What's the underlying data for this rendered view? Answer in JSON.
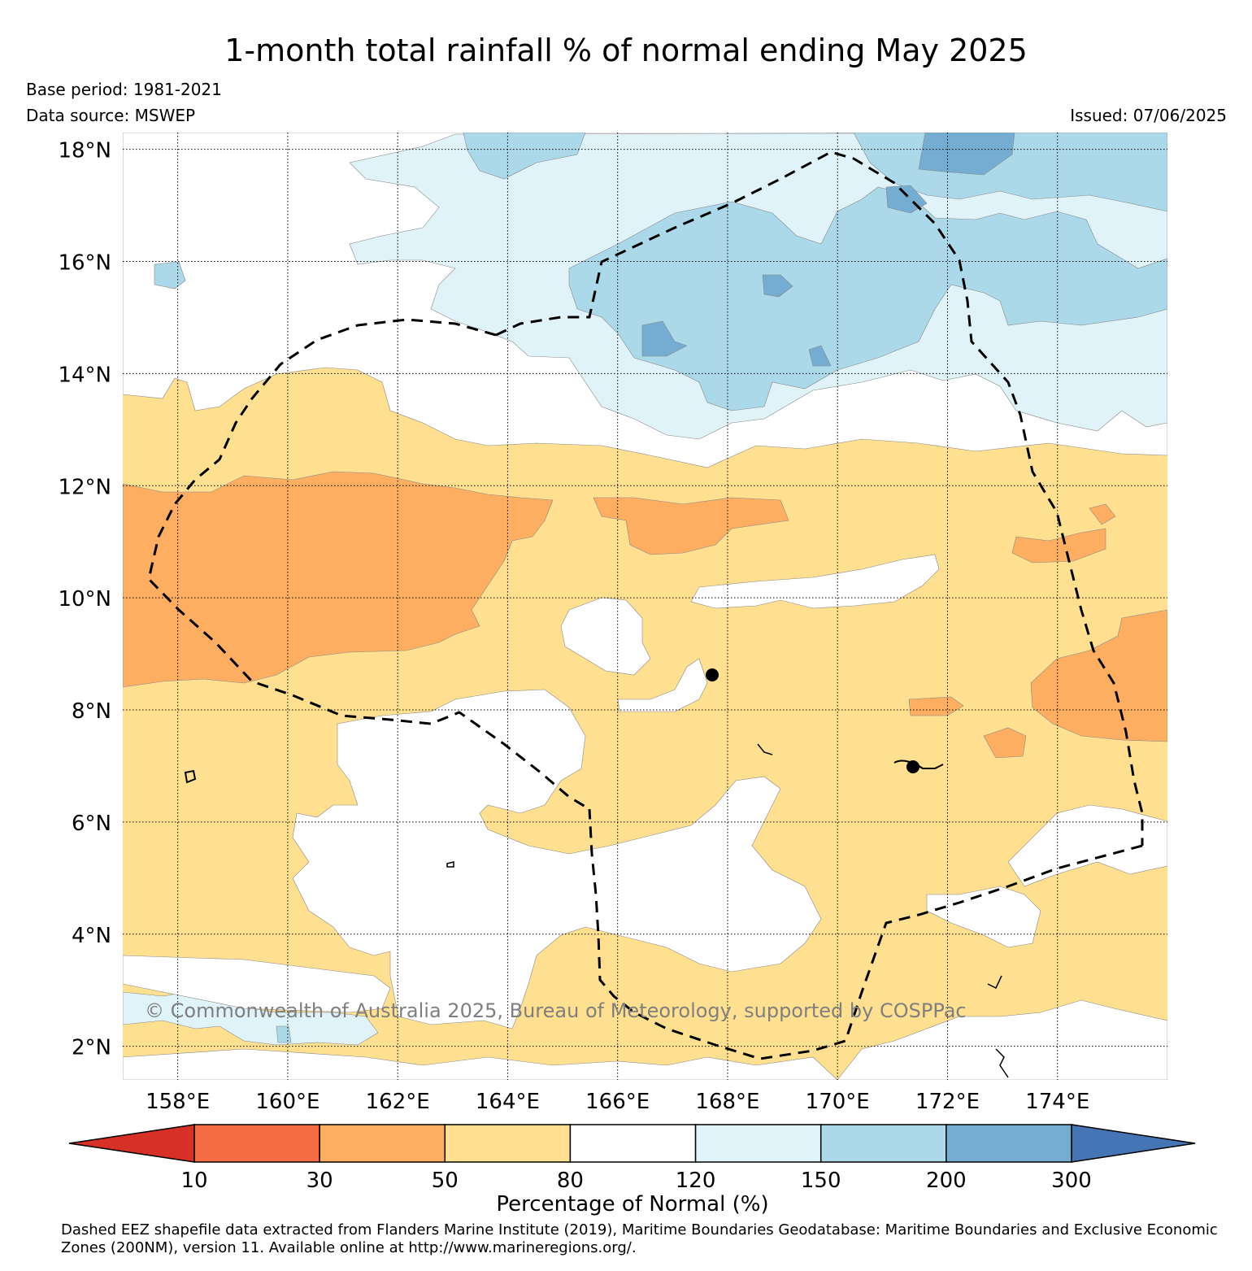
{
  "title": "1-month total rainfall % of normal ending May 2025",
  "base_period": "Base period: 1981-2021",
  "data_source": "Data source: MSWEP",
  "issued": "Issued: 07/06/2025",
  "copyright": "© Commonwealth of Australia 2025, Bureau of Meteorology, supported by COSPPac",
  "footnote": "Dashed EEZ shapefile data extracted from Flanders Marine Institute (2019), Maritime Boundaries Geodatabase: Maritime Boundaries and Exclusive Economic Zones (200NM), version 11. Available online at http://www.marineregions.org/.",
  "map": {
    "lon_range": [
      157,
      176
    ],
    "lat_range": [
      1.4,
      18.3
    ],
    "lat_ticks": [
      {
        "value": 2,
        "label": "2°N"
      },
      {
        "value": 4,
        "label": "4°N"
      },
      {
        "value": 6,
        "label": "6°N"
      },
      {
        "value": 8,
        "label": "8°N"
      },
      {
        "value": 10,
        "label": "10°N"
      },
      {
        "value": 12,
        "label": "12°N"
      },
      {
        "value": 14,
        "label": "14°N"
      },
      {
        "value": 16,
        "label": "16°N"
      },
      {
        "value": 18,
        "label": "18°N"
      }
    ],
    "lon_ticks": [
      {
        "value": 158,
        "label": "158°E"
      },
      {
        "value": 160,
        "label": "160°E"
      },
      {
        "value": 162,
        "label": "162°E"
      },
      {
        "value": 164,
        "label": "164°E"
      },
      {
        "value": 166,
        "label": "166°E"
      },
      {
        "value": 168,
        "label": "168°E"
      },
      {
        "value": 170,
        "label": "170°E"
      },
      {
        "value": 172,
        "label": "172°E"
      },
      {
        "value": 174,
        "label": "174°E"
      }
    ],
    "grid": true,
    "eez_boundary": "dashed",
    "islands": [
      {
        "lon": 167.7,
        "lat": 8.7
      },
      {
        "lon": 171.4,
        "lat": 7.1
      }
    ]
  },
  "colorbar": {
    "title": "Percentage of Normal (%)",
    "boundaries": [
      "10",
      "30",
      "50",
      "80",
      "120",
      "150",
      "200",
      "300"
    ],
    "colors": {
      "below_10": "#d73027",
      "10_30": "#f46d43",
      "30_50": "#fdae61",
      "50_80": "#fee090",
      "80_120": "#ffffff",
      "120_150": "#e0f3f8",
      "150_200": "#abd9e9",
      "200_300": "#74add1",
      "above_300": "#4575b4"
    },
    "extend": "both"
  }
}
